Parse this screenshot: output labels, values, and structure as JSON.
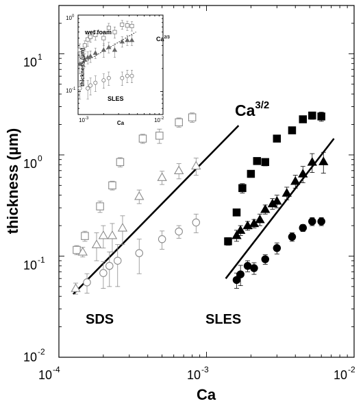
{
  "chart_data": [
    {
      "id": "main",
      "type": "scatter",
      "xscale": "log",
      "yscale": "log",
      "xlim": [
        0.0001,
        0.01
      ],
      "ylim": [
        0.01,
        30
      ],
      "xlabel": "Ca",
      "ylabel": "thickness (µm)",
      "xticks": [
        {
          "value": 0.0001,
          "base": "10",
          "exp": "-4"
        },
        {
          "value": 0.001,
          "base": "10",
          "exp": "-3"
        },
        {
          "value": 0.01,
          "base": "10",
          "exp": "-2"
        }
      ],
      "yticks": [
        {
          "value": 0.01,
          "base": "10",
          "exp": "-2"
        },
        {
          "value": 0.1,
          "base": "10",
          "exp": "-1"
        },
        {
          "value": 1,
          "base": "10",
          "exp": "0"
        },
        {
          "value": 10,
          "base": "10",
          "exp": "1"
        }
      ],
      "annotations": {
        "sds": "SDS",
        "sles": "SLES",
        "ca_base": "Ca",
        "ca_exp": "3/2"
      },
      "series": [
        {
          "surfactant": "SDS",
          "marker": "square",
          "filled": false,
          "color": "#8a8a8a",
          "points": [
            [
              0.000132,
              0.115,
              0.012
            ],
            [
              0.00015,
              0.158,
              0.018
            ],
            [
              0.00019,
              0.31,
              0.04
            ],
            [
              0.00023,
              0.5,
              0.05
            ],
            [
              0.00026,
              0.85,
              0.09
            ],
            [
              0.00037,
              1.45,
              0.15
            ],
            [
              0.00048,
              1.55,
              0.25
            ],
            [
              0.00065,
              2.1,
              0.22
            ],
            [
              0.0008,
              2.35,
              0.25
            ]
          ]
        },
        {
          "surfactant": "SDS",
          "marker": "triangle",
          "filled": false,
          "color": "#8a8a8a",
          "points": [
            [
              0.00013,
              0.048,
              0.006
            ],
            [
              0.000145,
              0.11,
              0.012
            ],
            [
              0.00018,
              0.13,
              0.04
            ],
            [
              0.0002,
              0.16,
              0.04
            ],
            [
              0.00023,
              0.16,
              0.05
            ],
            [
              0.00027,
              0.19,
              0.06
            ],
            [
              0.00035,
              0.39,
              0.06
            ],
            [
              0.0005,
              0.6,
              0.09
            ],
            [
              0.00065,
              0.7,
              0.12
            ],
            [
              0.00085,
              0.78,
              0.15
            ]
          ]
        },
        {
          "surfactant": "SDS",
          "marker": "circle",
          "filled": false,
          "color": "#8a8a8a",
          "points": [
            [
              0.000155,
              0.055,
              0.012
            ],
            [
              0.0002,
              0.068,
              0.02
            ],
            [
              0.00022,
              0.08,
              0.03
            ],
            [
              0.00025,
              0.09,
              0.04
            ],
            [
              0.00035,
              0.107,
              0.04
            ],
            [
              0.0005,
              0.147,
              0.03
            ],
            [
              0.00065,
              0.175,
              0.025
            ],
            [
              0.00085,
              0.215,
              0.045
            ]
          ]
        },
        {
          "surfactant": "SLES",
          "marker": "square",
          "filled": true,
          "color": "#000000",
          "points": [
            [
              0.0014,
              0.14,
              0.012
            ],
            [
              0.0016,
              0.27,
              0.02
            ],
            [
              0.00175,
              0.47,
              0.05
            ],
            [
              0.002,
              0.65,
              0.05
            ],
            [
              0.0022,
              0.87,
              0.06
            ],
            [
              0.0025,
              0.85,
              0.07
            ],
            [
              0.003,
              1.45,
              0.1
            ],
            [
              0.0038,
              1.75,
              0.12
            ],
            [
              0.0045,
              2.25,
              0.15
            ],
            [
              0.0052,
              2.45,
              0.2
            ],
            [
              0.006,
              2.4,
              0.25
            ]
          ]
        },
        {
          "surfactant": "SLES",
          "marker": "triangle",
          "filled": true,
          "color": "#000000",
          "points": [
            [
              0.0016,
              0.16,
              0.02
            ],
            [
              0.0017,
              0.18,
              0.02
            ],
            [
              0.0019,
              0.2,
              0.02
            ],
            [
              0.0021,
              0.21,
              0.02
            ],
            [
              0.0023,
              0.23,
              0.03
            ],
            [
              0.0025,
              0.29,
              0.03
            ],
            [
              0.0028,
              0.33,
              0.04
            ],
            [
              0.003,
              0.35,
              0.05
            ],
            [
              0.0035,
              0.42,
              0.06
            ],
            [
              0.004,
              0.55,
              0.08
            ],
            [
              0.0045,
              0.65,
              0.12
            ],
            [
              0.0052,
              0.85,
              0.18
            ],
            [
              0.0062,
              0.86,
              0.2
            ]
          ]
        },
        {
          "surfactant": "SLES",
          "marker": "circle",
          "filled": true,
          "color": "#000000",
          "points": [
            [
              0.0016,
              0.058,
              0.01
            ],
            [
              0.0017,
              0.066,
              0.015
            ],
            [
              0.0019,
              0.08,
              0.01
            ],
            [
              0.0021,
              0.076,
              0.01
            ],
            [
              0.0025,
              0.093,
              0.01
            ],
            [
              0.003,
              0.12,
              0.015
            ],
            [
              0.0038,
              0.155,
              0.015
            ],
            [
              0.0045,
              0.19,
              0.015
            ],
            [
              0.0052,
              0.22,
              0.02
            ],
            [
              0.006,
              0.22,
              0.02
            ]
          ]
        }
      ],
      "fit_lines": [
        {
          "label": "SDS Ca^3/2 fit",
          "x": [
            0.000125,
            0.00165
          ],
          "y": [
            0.042,
            1.95
          ]
        },
        {
          "label": "SLES Ca^3/2 fit",
          "x": [
            0.00135,
            0.0073
          ],
          "y": [
            0.06,
            1.45
          ]
        }
      ]
    },
    {
      "id": "inset",
      "type": "scatter",
      "xscale": "log",
      "yscale": "log",
      "xlim": [
        0.001,
        0.01
      ],
      "ylim": [
        0.05,
        1
      ],
      "xlabel": "Ca",
      "ylabel": "thickness (µm)",
      "xticks": [
        {
          "value": 0.001,
          "base": "10",
          "exp": "-3"
        },
        {
          "value": 0.01,
          "base": "10",
          "exp": "-2"
        }
      ],
      "yticks": [
        {
          "value": 0.1,
          "base": "10",
          "exp": "-1"
        },
        {
          "value": 1,
          "base": "10",
          "exp": "0"
        }
      ],
      "annotations": {
        "wet_foam": "wet foam",
        "sles": "SLES",
        "ca_base": "Ca",
        "ca_exp": "2/3"
      },
      "series": [
        {
          "marker": "square",
          "filled": false,
          "color": "#666666",
          "points": [
            [
              0.00105,
              0.35,
              0.07
            ],
            [
              0.0012,
              0.4,
              0.06
            ],
            [
              0.0013,
              0.48,
              0.09
            ],
            [
              0.0014,
              0.52,
              0.08
            ],
            [
              0.0016,
              0.55,
              0.08
            ],
            [
              0.002,
              0.5,
              0.1
            ],
            [
              0.0023,
              0.68,
              0.1
            ],
            [
              0.0027,
              0.6,
              0.1
            ],
            [
              0.0033,
              0.75,
              0.1
            ],
            [
              0.0038,
              0.73,
              0.1
            ],
            [
              0.0043,
              0.72,
              0.1
            ]
          ]
        },
        {
          "marker": "triangle",
          "filled": true,
          "color": "#666666",
          "points": [
            [
              0.00105,
              0.23,
              0.06
            ],
            [
              0.0012,
              0.26,
              0.05
            ],
            [
              0.0013,
              0.28,
              0.05
            ],
            [
              0.0014,
              0.29,
              0.05
            ],
            [
              0.0016,
              0.32,
              0.05
            ],
            [
              0.002,
              0.35,
              0.07
            ],
            [
              0.0023,
              0.38,
              0.06
            ],
            [
              0.0027,
              0.35,
              0.07
            ],
            [
              0.0033,
              0.45,
              0.07
            ],
            [
              0.0038,
              0.47,
              0.07
            ],
            [
              0.0043,
              0.47,
              0.07
            ]
          ]
        },
        {
          "marker": "circle",
          "filled": false,
          "color": "#666666",
          "points": [
            [
              0.00105,
              0.11,
              0.03
            ],
            [
              0.0013,
              0.11,
              0.03
            ],
            [
              0.0014,
              0.12,
              0.03
            ],
            [
              0.0016,
              0.13,
              0.03
            ],
            [
              0.002,
              0.14,
              0.03
            ],
            [
              0.0023,
              0.15,
              0.03
            ],
            [
              0.0033,
              0.15,
              0.03
            ],
            [
              0.0038,
              0.16,
              0.03
            ],
            [
              0.0043,
              0.16,
              0.03
            ]
          ]
        }
      ],
      "fit_lines": [
        {
          "label": "Ca^2/3 fit",
          "style": "dotted",
          "x": [
            0.0011,
            0.0048
          ],
          "y": [
            0.23,
            0.6
          ]
        }
      ]
    }
  ]
}
